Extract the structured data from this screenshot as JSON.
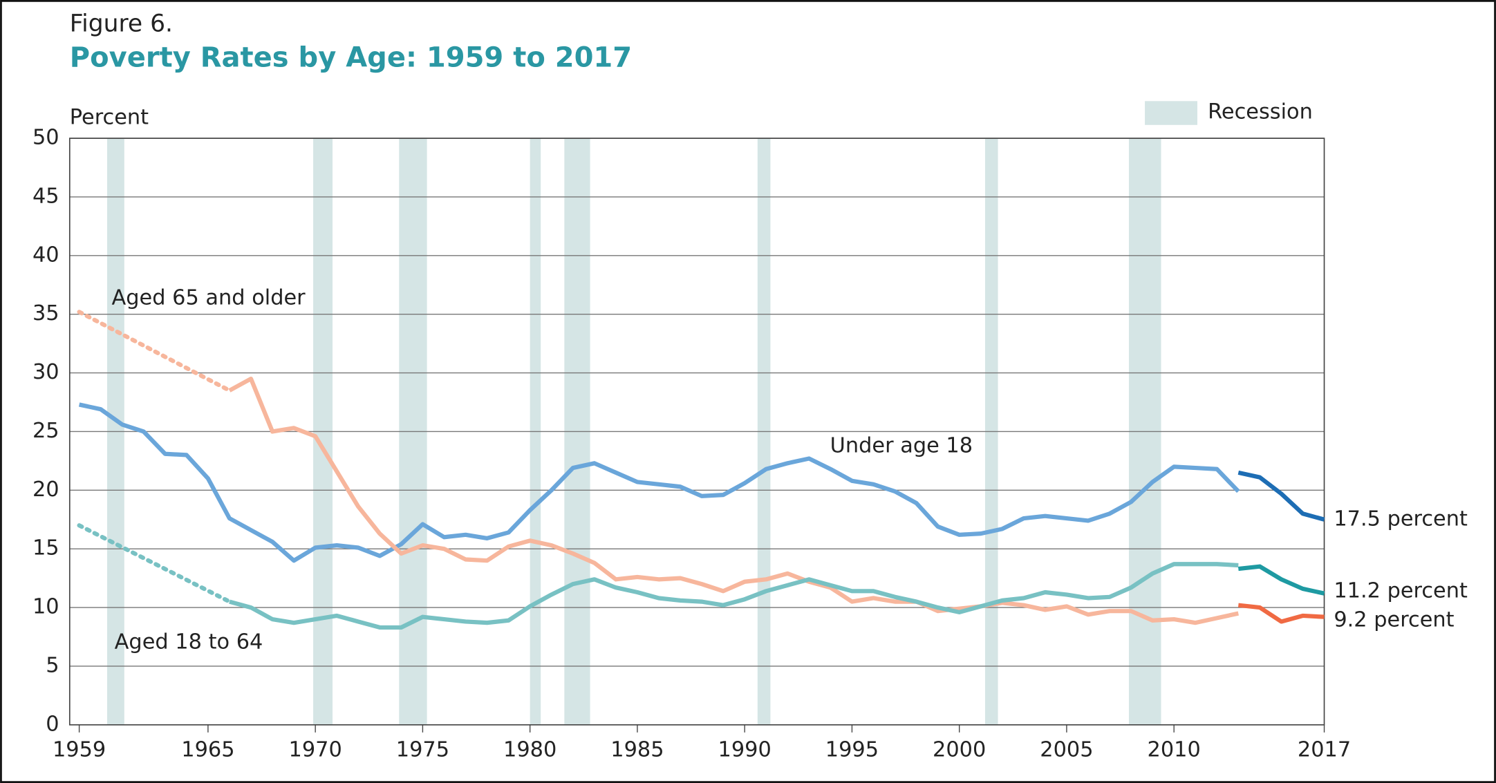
{
  "chart_data": {
    "type": "line",
    "figure_label": "Figure 6.",
    "title": "Poverty Rates by Age: 1959 to 2017",
    "y_label": "Percent",
    "xlim": [
      1959,
      2017
    ],
    "xticks": [
      1959,
      1965,
      1970,
      1975,
      1980,
      1985,
      1990,
      1995,
      2000,
      2005,
      2010,
      2017
    ],
    "ylim": [
      0,
      50
    ],
    "yticks": [
      0,
      5,
      10,
      15,
      20,
      25,
      30,
      35,
      40,
      45,
      50
    ],
    "grid": true,
    "recession_label": "Recession",
    "recession_color": "#d5e5e5",
    "recessions": [
      [
        1960.3,
        1961.1
      ],
      [
        1969.9,
        1970.8
      ],
      [
        1973.9,
        1975.2
      ],
      [
        1980.0,
        1980.5
      ],
      [
        1981.6,
        1982.8
      ],
      [
        1990.6,
        1991.2
      ],
      [
        2001.2,
        2001.8
      ],
      [
        2007.9,
        2009.4
      ]
    ],
    "series": [
      {
        "name": "Under age 18",
        "color": "#6aa6da",
        "dashed": false,
        "x": [
          1959,
          1960,
          1961,
          1962,
          1963,
          1964,
          1965,
          1966,
          1967,
          1968,
          1969,
          1970,
          1971,
          1972,
          1973,
          1974,
          1975,
          1976,
          1977,
          1978,
          1979,
          1980,
          1981,
          1982,
          1983,
          1984,
          1985,
          1986,
          1987,
          1988,
          1989,
          1990,
          1991,
          1992,
          1993,
          1994,
          1995,
          1996,
          1997,
          1998,
          1999,
          2000,
          2001,
          2002,
          2003,
          2004,
          2005,
          2006,
          2007,
          2008,
          2009,
          2010,
          2011,
          2012,
          2013
        ],
        "values": [
          27.3,
          26.9,
          25.6,
          25.0,
          23.1,
          23.0,
          21.0,
          17.6,
          16.6,
          15.6,
          14.0,
          15.1,
          15.3,
          15.1,
          14.4,
          15.4,
          17.1,
          16.0,
          16.2,
          15.9,
          16.4,
          18.3,
          20.0,
          21.9,
          22.3,
          21.5,
          20.7,
          20.5,
          20.3,
          19.5,
          19.6,
          20.6,
          21.8,
          22.3,
          22.7,
          21.8,
          20.8,
          20.5,
          19.9,
          18.9,
          16.9,
          16.2,
          16.3,
          16.7,
          17.6,
          17.8,
          17.6,
          17.4,
          18.0,
          19.0,
          20.7,
          22.0,
          21.9,
          21.8,
          19.9
        ]
      },
      {
        "color": "#1d6db4",
        "dashed": false,
        "end_label": "17.5 percent",
        "x": [
          2013,
          2014,
          2015,
          2016,
          2017
        ],
        "values": [
          21.5,
          21.1,
          19.7,
          18.0,
          17.5
        ]
      },
      {
        "color": "#f7b69c",
        "dashed": true,
        "x": [
          1959,
          1966
        ],
        "values": [
          35.2,
          28.5
        ]
      },
      {
        "name": "Aged 65 and older",
        "color": "#f7b69c",
        "dashed": false,
        "x": [
          1966,
          1967,
          1968,
          1969,
          1970,
          1971,
          1972,
          1973,
          1974,
          1975,
          1976,
          1977,
          1978,
          1979,
          1980,
          1981,
          1982,
          1983,
          1984,
          1985,
          1986,
          1987,
          1988,
          1989,
          1990,
          1991,
          1992,
          1993,
          1994,
          1995,
          1996,
          1997,
          1998,
          1999,
          2000,
          2001,
          2002,
          2003,
          2004,
          2005,
          2006,
          2007,
          2008,
          2009,
          2010,
          2011,
          2012,
          2013
        ],
        "values": [
          28.5,
          29.5,
          25.0,
          25.3,
          24.6,
          21.6,
          18.6,
          16.3,
          14.6,
          15.3,
          15.0,
          14.1,
          14.0,
          15.2,
          15.7,
          15.3,
          14.6,
          13.8,
          12.4,
          12.6,
          12.4,
          12.5,
          12.0,
          11.4,
          12.2,
          12.4,
          12.9,
          12.2,
          11.7,
          10.5,
          10.8,
          10.5,
          10.5,
          9.7,
          9.9,
          10.1,
          10.4,
          10.2,
          9.8,
          10.1,
          9.4,
          9.7,
          9.7,
          8.9,
          9.0,
          8.7,
          9.1,
          9.5
        ]
      },
      {
        "color": "#f06a43",
        "dashed": false,
        "end_label": "9.2 percent",
        "x": [
          2013,
          2014,
          2015,
          2016,
          2017
        ],
        "values": [
          10.2,
          10.0,
          8.8,
          9.3,
          9.2
        ]
      },
      {
        "color": "#78c1c3",
        "dashed": true,
        "x": [
          1959,
          1966
        ],
        "values": [
          17.0,
          10.5
        ]
      },
      {
        "name": "Aged 18 to 64",
        "color": "#78c1c3",
        "dashed": false,
        "x": [
          1966,
          1967,
          1968,
          1969,
          1970,
          1971,
          1972,
          1973,
          1974,
          1975,
          1976,
          1977,
          1978,
          1979,
          1980,
          1981,
          1982,
          1983,
          1984,
          1985,
          1986,
          1987,
          1988,
          1989,
          1990,
          1991,
          1992,
          1993,
          1994,
          1995,
          1996,
          1997,
          1998,
          1999,
          2000,
          2001,
          2002,
          2003,
          2004,
          2005,
          2006,
          2007,
          2008,
          2009,
          2010,
          2011,
          2012,
          2013
        ],
        "values": [
          10.5,
          10.0,
          9.0,
          8.7,
          9.0,
          9.3,
          8.8,
          8.3,
          8.3,
          9.2,
          9.0,
          8.8,
          8.7,
          8.9,
          10.1,
          11.1,
          12.0,
          12.4,
          11.7,
          11.3,
          10.8,
          10.6,
          10.5,
          10.2,
          10.7,
          11.4,
          11.9,
          12.4,
          11.9,
          11.4,
          11.4,
          10.9,
          10.5,
          10.0,
          9.6,
          10.1,
          10.6,
          10.8,
          11.3,
          11.1,
          10.8,
          10.9,
          11.7,
          12.9,
          13.7,
          13.7,
          13.7,
          13.6
        ]
      },
      {
        "color": "#1e9aa2",
        "dashed": false,
        "end_label": "11.2 percent",
        "x": [
          2013,
          2014,
          2015,
          2016,
          2017
        ],
        "values": [
          13.3,
          13.5,
          12.4,
          11.6,
          11.2
        ]
      }
    ]
  }
}
